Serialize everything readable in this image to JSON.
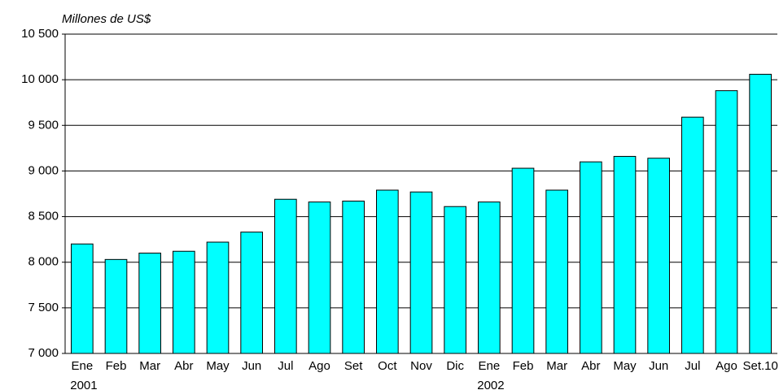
{
  "chart_data": {
    "type": "bar",
    "y_label": "Millones de US$",
    "categories": [
      "Ene",
      "Feb",
      "Mar",
      "Abr",
      "May",
      "Jun",
      "Jul",
      "Ago",
      "Set",
      "Oct",
      "Nov",
      "Dic",
      "Ene",
      "Feb",
      "Mar",
      "Abr",
      "May",
      "Jun",
      "Jul",
      "Ago",
      "Set.10"
    ],
    "years": [
      "2001",
      null,
      null,
      null,
      null,
      null,
      null,
      null,
      null,
      null,
      null,
      null,
      "2002",
      null,
      null,
      null,
      null,
      null,
      null,
      null,
      null
    ],
    "values": [
      8200,
      8030,
      8100,
      8120,
      8220,
      8330,
      8690,
      8660,
      8670,
      8790,
      8770,
      8610,
      8660,
      9030,
      8790,
      9100,
      9160,
      9140,
      9590,
      9880,
      10060
    ],
    "color": "#00ffff",
    "ylim": [
      7000,
      10500
    ],
    "yticks": [
      {
        "value": 7000,
        "label": "7 000"
      },
      {
        "value": 7500,
        "label": "7 500"
      },
      {
        "value": 8000,
        "label": "8 000"
      },
      {
        "value": 8500,
        "label": "8 500"
      },
      {
        "value": 9000,
        "label": "9 000"
      },
      {
        "value": 9500,
        "label": "9 500"
      },
      {
        "value": 10000,
        "label": "10 000"
      },
      {
        "value": 10500,
        "label": "10 500"
      }
    ],
    "grid": true
  }
}
